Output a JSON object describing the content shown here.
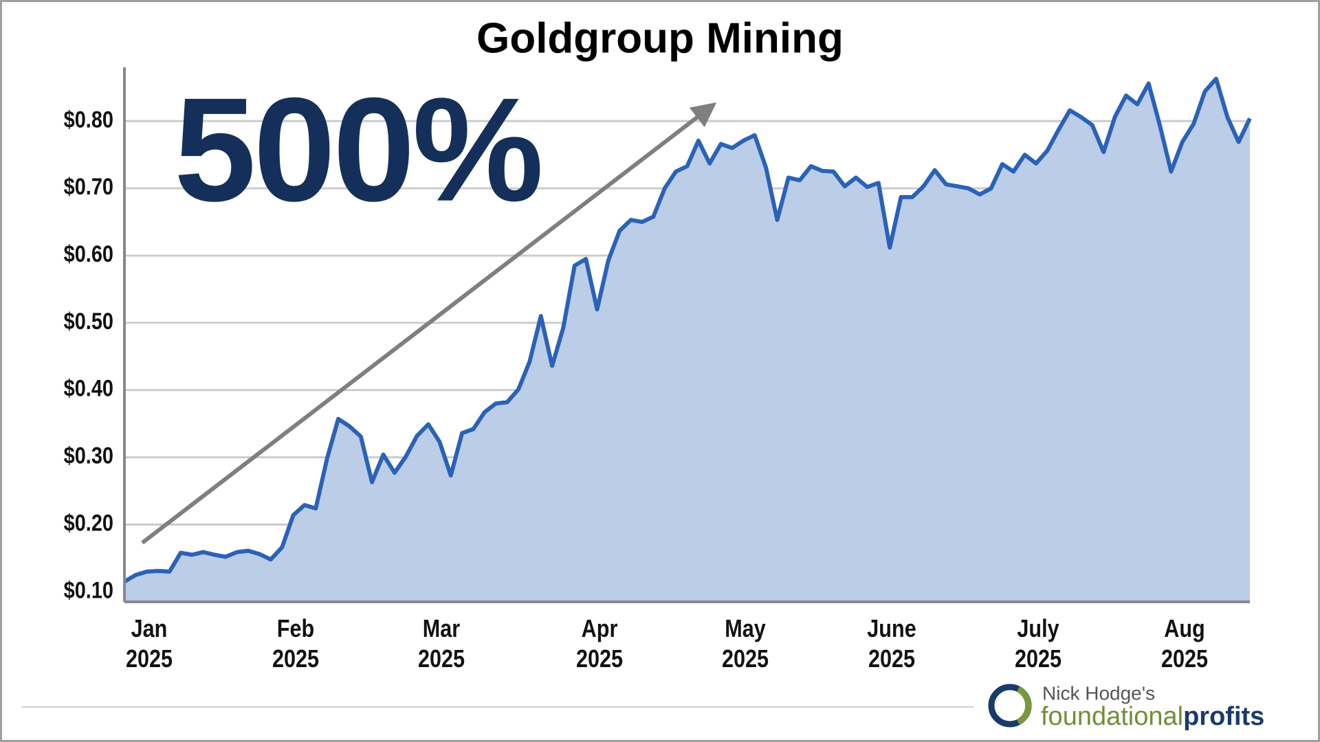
{
  "chart_data": {
    "type": "area",
    "title": "Goldgroup Mining",
    "annotations": [
      "500%"
    ],
    "branding": {
      "byline": "Nick Hodge's",
      "brand_light": "foundational",
      "brand_bold": "profits"
    },
    "categories": [
      null,
      null,
      "Jan 2025",
      null,
      null,
      null,
      null,
      null,
      null,
      null,
      null,
      null,
      null,
      null,
      null,
      "Feb 2025",
      null,
      null,
      null,
      null,
      null,
      null,
      null,
      null,
      null,
      null,
      null,
      null,
      "Mar 2025",
      null,
      null,
      null,
      null,
      null,
      null,
      null,
      null,
      null,
      null,
      null,
      null,
      null,
      "Apr 2025",
      null,
      null,
      null,
      null,
      null,
      null,
      null,
      null,
      null,
      null,
      null,
      null,
      "May 2025",
      null,
      null,
      null,
      null,
      null,
      null,
      null,
      null,
      null,
      null,
      null,
      null,
      "June 2025",
      null,
      null,
      null,
      null,
      null,
      null,
      null,
      null,
      null,
      null,
      null,
      null,
      "July 2025",
      null,
      null,
      null,
      null,
      null,
      null,
      null,
      null,
      null,
      null,
      null,
      null,
      "Aug 2025",
      null,
      null,
      null,
      null,
      null,
      null
    ],
    "series": [
      {
        "name": "Goldgroup Mining",
        "color": "#2a62b8",
        "fill": "#bccde8",
        "values": [
          0.115,
          0.125,
          0.13,
          0.131,
          0.13,
          0.158,
          0.155,
          0.159,
          0.155,
          0.152,
          0.159,
          0.161,
          0.156,
          0.148,
          0.166,
          0.214,
          0.229,
          0.224,
          0.298,
          0.357,
          0.346,
          0.331,
          0.263,
          0.304,
          0.277,
          0.301,
          0.332,
          0.349,
          0.323,
          0.273,
          0.336,
          0.342,
          0.367,
          0.38,
          0.382,
          0.401,
          0.442,
          0.51,
          0.436,
          0.493,
          0.585,
          0.595,
          0.52,
          0.593,
          0.637,
          0.653,
          0.65,
          0.658,
          0.7,
          0.725,
          0.733,
          0.771,
          0.737,
          0.766,
          0.76,
          0.771,
          0.779,
          0.731,
          0.653,
          0.716,
          0.712,
          0.733,
          0.726,
          0.725,
          0.703,
          0.716,
          0.702,
          0.708,
          0.612,
          0.687,
          0.687,
          0.703,
          0.727,
          0.706,
          0.703,
          0.7,
          0.691,
          0.7,
          0.736,
          0.725,
          0.75,
          0.737,
          0.756,
          0.787,
          0.816,
          0.806,
          0.794,
          0.754,
          0.806,
          0.838,
          0.825,
          0.856,
          0.794,
          0.725,
          0.769,
          0.796,
          0.844,
          0.863,
          0.806,
          0.769,
          0.804
        ]
      }
    ],
    "ylim": [
      0.085,
      0.88
    ],
    "yticks": [
      {
        "value": 0.1,
        "label": "$0.10"
      },
      {
        "value": 0.2,
        "label": "$0.20"
      },
      {
        "value": 0.3,
        "label": "$0.30"
      },
      {
        "value": 0.4,
        "label": "$0.40"
      },
      {
        "value": 0.5,
        "label": "$0.50"
      },
      {
        "value": 0.6,
        "label": "$0.60"
      },
      {
        "value": 0.7,
        "label": "$0.70"
      },
      {
        "value": 0.8,
        "label": "$0.80"
      }
    ],
    "grid": true
  }
}
